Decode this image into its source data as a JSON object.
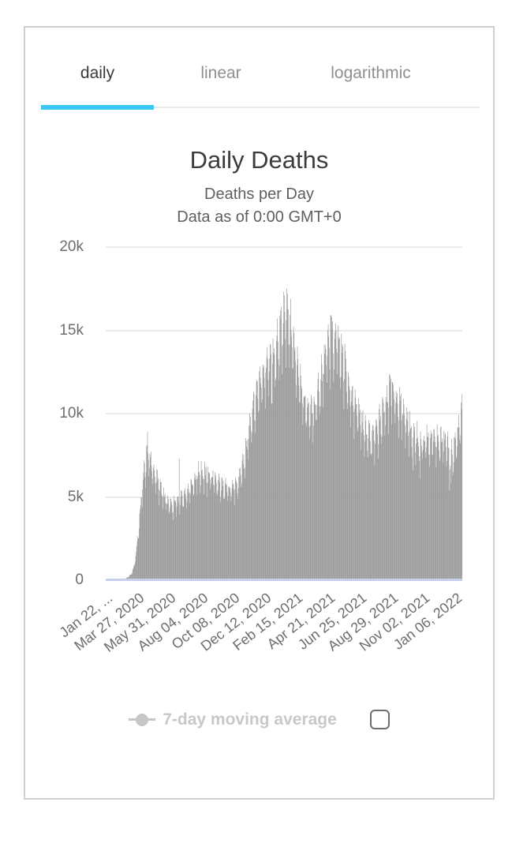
{
  "tabs": {
    "items": [
      {
        "label": "daily",
        "active": true
      },
      {
        "label": "linear",
        "active": false
      },
      {
        "label": "logarithmic",
        "active": false
      }
    ]
  },
  "chart": {
    "title": "Daily Deaths",
    "subtitle1": "Deaths per Day",
    "subtitle2": "Data as of 0:00 GMT+0",
    "legend": {
      "label": "7-day moving average",
      "checked": false
    }
  },
  "colors": {
    "accent": "#3cc8f5",
    "bar": "#9a9a9a",
    "baseline": "#c5cfe9",
    "gridline": "#eaeaea",
    "axis_text": "#6d6d6d"
  },
  "chart_data": {
    "type": "bar",
    "title": "Daily Deaths",
    "subtitle1": "Deaths per Day",
    "subtitle2": "Data as of 0:00 GMT+0",
    "ylabel": "deaths per day",
    "ylim": [
      0,
      20000
    ],
    "y_tick_labels": [
      "20k",
      "15k",
      "10k",
      "5k",
      "0"
    ],
    "y_tick_values": [
      20000,
      15000,
      10000,
      5000,
      0
    ],
    "grid": true,
    "legend_label": "7-day moving average",
    "bar_color": "#9a9a9a",
    "days_total": 730,
    "x_tick_labels": [
      "Jan 22, ...",
      "Mar 27, 2020",
      "May 31, 2020",
      "Aug 04, 2020",
      "Oct 08, 2020",
      "Dec 12, 2020",
      "Feb 15, 2021",
      "Apr 21, 2021",
      "Jun 25, 2021",
      "Aug 29, 2021",
      "Nov 02, 2021",
      "Jan 06, 2022"
    ],
    "x_tick_day_offsets": [
      0,
      65,
      130,
      195,
      260,
      325,
      390,
      455,
      520,
      585,
      650,
      715
    ],
    "anchors": {
      "days": [
        0,
        10,
        20,
        30,
        40,
        48,
        53,
        58,
        63,
        68,
        73,
        78,
        83,
        88,
        95,
        102,
        110,
        118,
        127,
        134,
        141,
        148,
        155,
        162,
        169,
        176,
        183,
        190,
        197,
        204,
        211,
        218,
        225,
        232,
        239,
        246,
        253,
        260,
        267,
        274,
        281,
        288,
        295,
        302,
        309,
        316,
        323,
        330,
        337,
        344,
        351,
        358,
        365,
        369,
        373,
        380,
        387,
        394,
        401,
        408,
        415,
        422,
        429,
        436,
        443,
        450,
        457,
        464,
        471,
        478,
        485,
        492,
        499,
        506,
        513,
        520,
        527,
        534,
        541,
        548,
        555,
        562,
        569,
        576,
        583,
        590,
        597,
        604,
        611,
        618,
        625,
        632,
        639,
        646,
        653,
        660,
        667,
        674,
        681,
        688,
        695,
        702,
        709,
        716,
        723,
        729
      ],
      "values": [
        15,
        60,
        95,
        75,
        95,
        240,
        420,
        900,
        1900,
        3300,
        5000,
        6500,
        7300,
        7500,
        6700,
        6200,
        5600,
        5000,
        4500,
        4550,
        4650,
        4750,
        4950,
        5050,
        5350,
        5650,
        6050,
        6350,
        6450,
        6350,
        6200,
        6100,
        5900,
        5700,
        5500,
        5500,
        5400,
        5500,
        5700,
        6200,
        6900,
        8100,
        9300,
        10300,
        11000,
        11800,
        12400,
        12900,
        13100,
        13400,
        14200,
        15000,
        15600,
        15900,
        15400,
        14700,
        13600,
        12400,
        11300,
        10500,
        10100,
        10200,
        10700,
        11400,
        12300,
        13300,
        14200,
        14400,
        14100,
        13700,
        13100,
        12300,
        11500,
        10800,
        10200,
        9700,
        9200,
        8800,
        8500,
        8600,
        9000,
        9500,
        10200,
        10800,
        11200,
        11100,
        10800,
        10300,
        9800,
        9300,
        8900,
        8600,
        8400,
        8300,
        8400,
        8500,
        8500,
        8400,
        8300,
        8400,
        8200,
        7800,
        7600,
        8200,
        9300,
        10300
      ]
    },
    "weekday_factors": [
      1.07,
      1.05,
      1.03,
      0.94,
      0.84,
      0.93,
      1.06
    ],
    "spike_overrides": {
      "85": 8900,
      "150": 7300,
      "339": 10600,
      "346": 11600,
      "370": 17500,
      "372": 17200,
      "460": 15900,
      "475": 15300,
      "586": 11900,
      "629": 6600,
      "643": 6100,
      "703": 5400,
      "706": 5800,
      "710": 6300
    },
    "noise_amplitude": 0.06
  }
}
